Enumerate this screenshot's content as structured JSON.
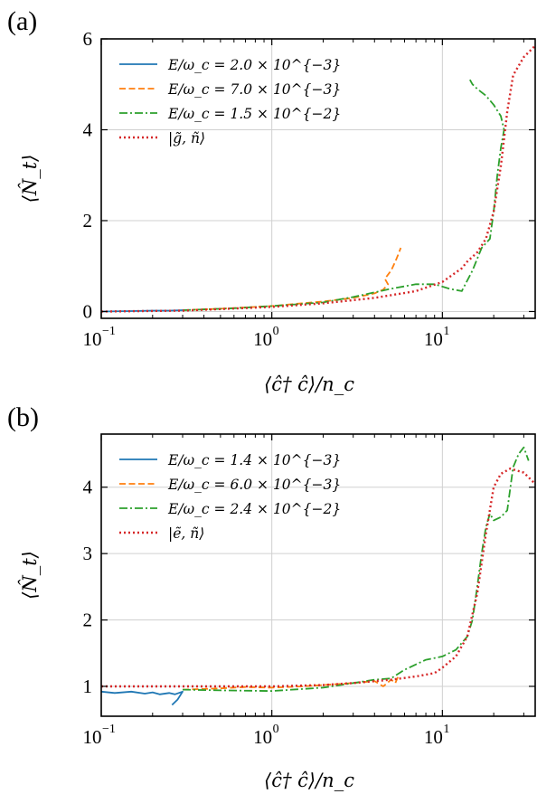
{
  "chart_data": [
    {
      "type": "line",
      "panel_label": "(a)",
      "xlabel": "⟨ĉ† ĉ⟩/n_c",
      "ylabel": "⟨N̂_t⟩",
      "xscale": "log",
      "xlim": [
        0.1,
        35
      ],
      "ylim": [
        -0.15,
        6.0
      ],
      "xticks": [
        0.1,
        1,
        10
      ],
      "xtick_labels": [
        "10",
        "10",
        "10"
      ],
      "xtick_exponents": [
        "−1",
        "0",
        "1"
      ],
      "yticks": [
        0,
        2,
        4,
        6
      ],
      "ytick_labels": [
        "0",
        "2",
        "4",
        "6"
      ],
      "grid": true,
      "legend_placement": "top-left",
      "series": [
        {
          "name": "E/ω_c = 2.0 × 10^{−3}",
          "color": "#1f77b4",
          "style": "solid",
          "x": [
            0.1,
            0.15,
            0.2,
            0.25,
            0.3
          ],
          "y": [
            0.0,
            0.01,
            0.02,
            0.02,
            0.03
          ]
        },
        {
          "name": "E/ω_c = 7.0 × 10^{−3}",
          "color": "#ff7f0e",
          "style": "dashed",
          "x": [
            0.3,
            0.5,
            1.0,
            1.5,
            2.0,
            3.0,
            4.0,
            4.5,
            4.8,
            4.6,
            5.0,
            5.3,
            5.5,
            5.7
          ],
          "y": [
            0.03,
            0.06,
            0.12,
            0.18,
            0.22,
            0.3,
            0.4,
            0.48,
            0.6,
            0.72,
            0.9,
            1.1,
            1.25,
            1.4
          ]
        },
        {
          "name": "E/ω_c = 1.5 × 10^{−2}",
          "color": "#2ca02c",
          "style": "dashdot",
          "x": [
            0.3,
            0.6,
            1.0,
            2.0,
            3.0,
            5.0,
            7.0,
            9.0,
            11.0,
            13.0,
            15.0,
            17.0,
            19.0,
            20.0,
            21.0,
            22.0,
            23.0,
            22.0,
            20.0,
            18.0,
            16.0,
            15.0,
            14.5
          ],
          "y": [
            0.03,
            0.07,
            0.12,
            0.2,
            0.32,
            0.5,
            0.6,
            0.6,
            0.5,
            0.45,
            0.9,
            1.4,
            1.6,
            2.2,
            3.0,
            3.6,
            4.0,
            4.3,
            4.55,
            4.75,
            4.9,
            5.0,
            5.1
          ]
        },
        {
          "name": "|g̃, ñ⟩",
          "color": "#d62728",
          "style": "dotted",
          "x": [
            0.1,
            0.3,
            1.0,
            2.0,
            3.0,
            4.0,
            5.0,
            7.0,
            10.0,
            13.0,
            14.0,
            16.0,
            18.0,
            20.0,
            22.0,
            24.0,
            26.0,
            30.0,
            35.0
          ],
          "y": [
            0.0,
            0.02,
            0.1,
            0.18,
            0.25,
            0.3,
            0.36,
            0.45,
            0.65,
            0.95,
            1.1,
            1.3,
            1.6,
            2.2,
            3.2,
            4.4,
            5.2,
            5.6,
            5.85
          ]
        }
      ]
    },
    {
      "type": "line",
      "panel_label": "(b)",
      "xlabel": "⟨ĉ† ĉ⟩/n_c",
      "ylabel": "⟨N̂_t⟩",
      "xscale": "log",
      "xlim": [
        0.1,
        35
      ],
      "ylim": [
        0.55,
        4.8
      ],
      "xticks": [
        0.1,
        1,
        10
      ],
      "xtick_labels": [
        "10",
        "10",
        "10"
      ],
      "xtick_exponents": [
        "−1",
        "0",
        "1"
      ],
      "yticks": [
        1,
        2,
        3,
        4
      ],
      "ytick_labels": [
        "1",
        "2",
        "3",
        "4"
      ],
      "grid": true,
      "legend_placement": "top-left",
      "series": [
        {
          "name": "E/ω_c = 1.4 × 10^{−3}",
          "color": "#1f77b4",
          "style": "solid",
          "x": [
            0.1,
            0.12,
            0.15,
            0.18,
            0.2,
            0.22,
            0.25,
            0.27,
            0.3,
            0.28,
            0.26
          ],
          "y": [
            0.92,
            0.9,
            0.92,
            0.89,
            0.91,
            0.88,
            0.9,
            0.88,
            0.92,
            0.8,
            0.72
          ]
        },
        {
          "name": "E/ω_c = 6.0 × 10^{−3}",
          "color": "#ff7f0e",
          "style": "dashed",
          "x": [
            0.3,
            0.5,
            0.7,
            1.0,
            1.5,
            2.0,
            3.0,
            4.0,
            4.5,
            5.0,
            5.3,
            5.5
          ],
          "y": [
            0.95,
            0.97,
            0.99,
            0.98,
            1.0,
            1.02,
            1.05,
            1.08,
            1.0,
            1.1,
            1.05,
            1.15
          ]
        },
        {
          "name": "E/ω_c = 2.4 × 10^{−2}",
          "color": "#2ca02c",
          "style": "dashdot",
          "x": [
            0.3,
            0.5,
            1.0,
            2.0,
            3.0,
            4.0,
            5.0,
            6.0,
            8.0,
            10.0,
            12.0,
            14.0,
            15.0,
            16.0,
            17.0,
            18.0,
            19.0,
            20.0,
            22.0,
            24.0,
            26.0,
            28.0,
            30.0,
            32.0
          ],
          "y": [
            0.95,
            0.94,
            0.93,
            0.98,
            1.05,
            1.1,
            1.12,
            1.25,
            1.4,
            1.45,
            1.55,
            1.75,
            2.0,
            2.5,
            3.0,
            3.4,
            3.6,
            3.5,
            3.55,
            3.65,
            4.3,
            4.5,
            4.6,
            4.4
          ]
        },
        {
          "name": "|ẽ, ñ⟩",
          "color": "#d62728",
          "style": "dotted",
          "x": [
            0.1,
            0.3,
            0.5,
            1.0,
            2.0,
            3.0,
            5.0,
            7.0,
            9.0,
            10.0,
            12.0,
            14.0,
            16.0,
            18.0,
            20.0,
            22.0,
            25.0,
            30.0,
            35.0
          ],
          "y": [
            1.0,
            1.0,
            1.0,
            1.0,
            1.02,
            1.05,
            1.1,
            1.15,
            1.2,
            1.28,
            1.45,
            1.75,
            2.4,
            3.3,
            4.0,
            4.2,
            4.28,
            4.22,
            4.05
          ]
        }
      ]
    }
  ]
}
